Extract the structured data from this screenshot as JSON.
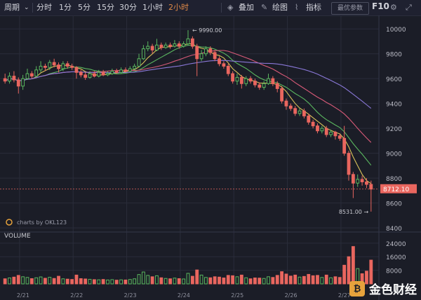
{
  "toolbar": {
    "period_label": "周期",
    "intervals": [
      "分时",
      "1分",
      "5分",
      "15分",
      "30分",
      "1小时",
      "2小时"
    ],
    "active_interval": "2小时",
    "overlay_label": "叠加",
    "draw_label": "绘图",
    "indicator_label": "指标",
    "params_label": "最优参数",
    "f10_label": "F10"
  },
  "colors": {
    "up": "#5ab65f",
    "down": "#e9665f",
    "ma1": "#d8c25a",
    "ma2": "#5ab65f",
    "ma3": "#d85a78",
    "ma4": "#8a78d8",
    "background": "#1b1d27",
    "grid": "#2a2d3a"
  },
  "watermark": "charts by OKL123",
  "logo_text": "金色财经",
  "current_price": "8712.10",
  "high_label": "9990.00",
  "low_label": "8531.00",
  "chart_data": {
    "type": "candlestick",
    "price_axis": {
      "ticks": [
        10000,
        9800,
        9600,
        9400,
        9200,
        9000,
        8800,
        8600,
        8400
      ],
      "range": [
        8350,
        10080
      ]
    },
    "volume_axis": {
      "label": "VOLUME",
      "ticks": [
        24000,
        16000,
        8000
      ],
      "range": [
        0,
        26000
      ]
    },
    "x_ticks": [
      "2/21",
      "2/22",
      "2/23",
      "2/24",
      "2/25",
      "2/26",
      "2/27"
    ],
    "candles": [
      [
        9600,
        9580,
        9640,
        9560,
        3000
      ],
      [
        9580,
        9620,
        9650,
        9560,
        3500
      ],
      [
        9620,
        9590,
        9660,
        9570,
        4000
      ],
      [
        9590,
        9540,
        9610,
        9480,
        5000
      ],
      [
        9540,
        9600,
        9630,
        9510,
        4200
      ],
      [
        9600,
        9640,
        9680,
        9590,
        3800
      ],
      [
        9640,
        9620,
        9660,
        9600,
        3100
      ],
      [
        9620,
        9670,
        9700,
        9610,
        3600
      ],
      [
        9670,
        9700,
        9740,
        9650,
        4100
      ],
      [
        9700,
        9690,
        9720,
        9660,
        3300
      ],
      [
        9690,
        9730,
        9750,
        9670,
        3900
      ],
      [
        9730,
        9710,
        9760,
        9690,
        3200
      ],
      [
        9710,
        9680,
        9730,
        9650,
        4500
      ],
      [
        9680,
        9720,
        9740,
        9660,
        3000
      ],
      [
        9720,
        9700,
        9740,
        9680,
        2800
      ],
      [
        9700,
        9690,
        9720,
        9670,
        2600
      ],
      [
        9690,
        9650,
        9700,
        9600,
        5200
      ],
      [
        9650,
        9630,
        9670,
        9610,
        3100
      ],
      [
        9630,
        9610,
        9650,
        9590,
        2900
      ],
      [
        9610,
        9640,
        9660,
        9600,
        2700
      ],
      [
        9640,
        9620,
        9660,
        9610,
        2500
      ],
      [
        9620,
        9650,
        9670,
        9610,
        2400
      ],
      [
        9650,
        9630,
        9670,
        9620,
        2600
      ],
      [
        9630,
        9640,
        9660,
        9620,
        2300
      ],
      [
        9640,
        9660,
        9680,
        9630,
        2500
      ],
      [
        9660,
        9650,
        9680,
        9640,
        2200
      ],
      [
        9650,
        9670,
        9690,
        9640,
        2400
      ],
      [
        9670,
        9660,
        9690,
        9650,
        2300
      ],
      [
        9660,
        9680,
        9700,
        9650,
        2600
      ],
      [
        9680,
        9700,
        9720,
        9670,
        3000
      ],
      [
        9700,
        9760,
        9800,
        9690,
        5500
      ],
      [
        9760,
        9840,
        9870,
        9750,
        7000
      ],
      [
        9840,
        9860,
        9900,
        9820,
        5000
      ],
      [
        9860,
        9830,
        9880,
        9800,
        4200
      ],
      [
        9830,
        9870,
        9920,
        9820,
        4800
      ],
      [
        9870,
        9850,
        9890,
        9830,
        3600
      ],
      [
        9850,
        9870,
        9890,
        9840,
        3200
      ],
      [
        9870,
        9860,
        9890,
        9840,
        3000
      ],
      [
        9860,
        9880,
        9910,
        9850,
        3400
      ],
      [
        9880,
        9860,
        9900,
        9840,
        3100
      ],
      [
        9860,
        9880,
        9900,
        9850,
        2900
      ],
      [
        9880,
        9920,
        9990,
        9870,
        6200
      ],
      [
        9920,
        9860,
        9940,
        9840,
        4500
      ],
      [
        9860,
        9760,
        9880,
        9620,
        8200
      ],
      [
        9760,
        9800,
        9830,
        9740,
        5200
      ],
      [
        9800,
        9840,
        9860,
        9780,
        3800
      ],
      [
        9840,
        9810,
        9860,
        9790,
        3600
      ],
      [
        9810,
        9760,
        9830,
        9740,
        4200
      ],
      [
        9760,
        9720,
        9780,
        9700,
        4000
      ],
      [
        9720,
        9700,
        9740,
        9680,
        3500
      ],
      [
        9700,
        9640,
        9720,
        9620,
        5000
      ],
      [
        9640,
        9580,
        9660,
        9560,
        4800
      ],
      [
        9580,
        9610,
        9640,
        9550,
        4200
      ],
      [
        9610,
        9560,
        9630,
        9520,
        5200
      ],
      [
        9560,
        9600,
        9620,
        9540,
        3600
      ],
      [
        9600,
        9580,
        9620,
        9560,
        3000
      ],
      [
        9580,
        9550,
        9600,
        9530,
        3500
      ],
      [
        9550,
        9530,
        9570,
        9510,
        3400
      ],
      [
        9530,
        9560,
        9580,
        9510,
        3200
      ],
      [
        9560,
        9600,
        9640,
        9550,
        4200
      ],
      [
        9600,
        9560,
        9620,
        9540,
        3800
      ],
      [
        9560,
        9520,
        9580,
        9490,
        5000
      ],
      [
        9520,
        9420,
        9540,
        9400,
        7200
      ],
      [
        9420,
        9380,
        9440,
        9350,
        5800
      ],
      [
        9380,
        9360,
        9400,
        9340,
        4600
      ],
      [
        9360,
        9320,
        9380,
        9300,
        5200
      ],
      [
        9320,
        9340,
        9360,
        9300,
        4000
      ],
      [
        9340,
        9300,
        9360,
        9280,
        4400
      ],
      [
        9300,
        9250,
        9320,
        9230,
        5600
      ],
      [
        9250,
        9220,
        9270,
        9200,
        4800
      ],
      [
        9220,
        9180,
        9240,
        9160,
        5000
      ],
      [
        9180,
        9200,
        9220,
        9160,
        3800
      ],
      [
        9200,
        9150,
        9220,
        9130,
        5200
      ],
      [
        9150,
        9170,
        9190,
        9130,
        3600
      ],
      [
        9170,
        9140,
        9180,
        9110,
        4200
      ],
      [
        9140,
        9120,
        9160,
        9100,
        3800
      ],
      [
        9120,
        9000,
        9220,
        8980,
        11000
      ],
      [
        9000,
        8830,
        9020,
        8780,
        16000
      ],
      [
        8830,
        8760,
        8850,
        8640,
        22000
      ],
      [
        8760,
        8790,
        8830,
        8730,
        9000
      ],
      [
        8790,
        8770,
        8820,
        8740,
        6000
      ],
      [
        8770,
        8750,
        8800,
        8720,
        7500
      ],
      [
        8750,
        8712,
        8780,
        8531,
        14000
      ]
    ]
  }
}
